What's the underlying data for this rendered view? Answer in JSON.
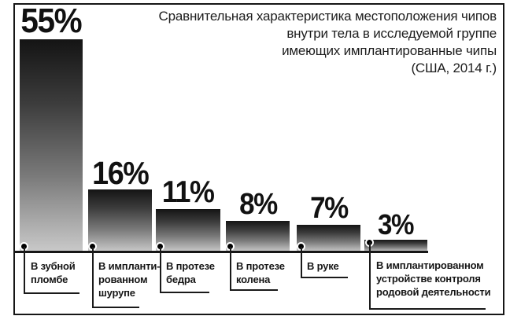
{
  "chart_data": {
    "type": "bar",
    "title": "Сравнительная характеристика местоположения чипов внутри тела в исследуемой группе имеющих имплантированные чипы (США, 2014 г.)",
    "title_lines": [
      "Сравнительная характеристика местоположения чипов",
      "внутри тела в исследуемой группе",
      "имеющих имплантированные чипы",
      "(США, 2014 г.)"
    ],
    "categories": [
      "В зубной пломбе",
      "В имплантированном шурупе",
      "В протезе бедра",
      "В протезе колена",
      "В руке",
      "В имплантированном устройстве контроля родовой деятельности"
    ],
    "values": [
      55,
      16,
      11,
      8,
      7,
      3
    ],
    "unit": "%",
    "xlabel": "",
    "ylabel": "",
    "ylim": [
      0,
      55
    ],
    "grid": false,
    "legend": false,
    "bar_gradient_top": "#141414",
    "bar_gradient_bottom": "#c9c9c9",
    "frame_color": "#161616",
    "background": "#ffffff"
  },
  "bars": [
    {
      "value_label": "55%",
      "label_lines": [
        "В зубной",
        "пломбе"
      ]
    },
    {
      "value_label": "16%",
      "label_lines": [
        "В импланти-",
        "рованном",
        "шурупе"
      ]
    },
    {
      "value_label": "11%",
      "label_lines": [
        "В протезе",
        "бедра"
      ]
    },
    {
      "value_label": "8%",
      "label_lines": [
        "В протезе",
        "колена"
      ]
    },
    {
      "value_label": "7%",
      "label_lines": [
        "В руке"
      ]
    },
    {
      "value_label": "3%",
      "label_lines": [
        "В имплантированном",
        "устройстве контроля",
        "родовой деятельности"
      ]
    }
  ]
}
